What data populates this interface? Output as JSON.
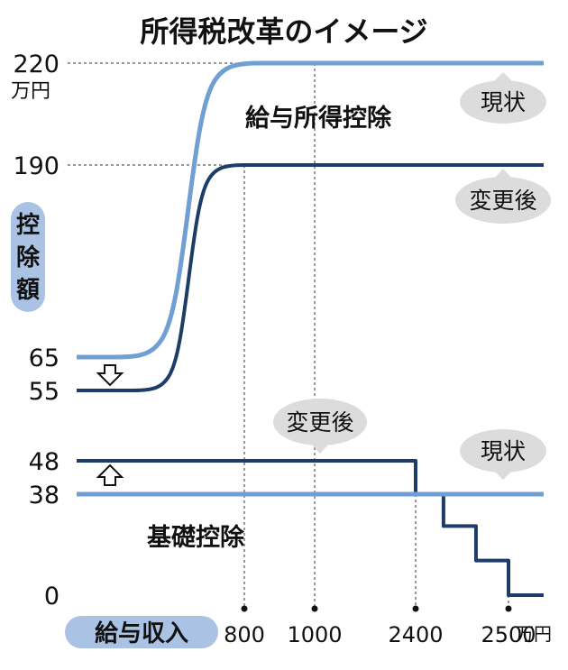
{
  "chart_data": {
    "type": "line",
    "title": "所得税改革のイメージ",
    "colors": {
      "current": "#6f9fd3",
      "after": "#1e3d66",
      "bubble": "#dcdcdc",
      "pill": "#aac3e4"
    },
    "y_axis": {
      "label": "控除額",
      "unit": "万円",
      "ticks": [
        {
          "value": 220,
          "label": "220"
        },
        {
          "value": 190,
          "label": "190"
        },
        {
          "value": 65,
          "label": "65"
        },
        {
          "value": 55,
          "label": "55"
        },
        {
          "value": 48,
          "label": "48"
        },
        {
          "value": 38,
          "label": "38"
        },
        {
          "value": 0,
          "label": "0"
        }
      ]
    },
    "x_axis": {
      "label": "給与収入",
      "unit": "万円",
      "ticks": [
        {
          "value": 800,
          "label": "800"
        },
        {
          "value": 1000,
          "label": "1000"
        },
        {
          "value": 2400,
          "label": "2400"
        },
        {
          "value": 2500,
          "label": "2500"
        }
      ]
    },
    "series": [
      {
        "group": "給与所得控除",
        "name": "現状",
        "style": "current",
        "points": [
          [
            0,
            65
          ],
          [
            180,
            65
          ],
          [
            850,
            220
          ],
          [
            1000,
            220
          ],
          [
            2700,
            220
          ]
        ]
      },
      {
        "group": "給与所得控除",
        "name": "変更後",
        "style": "after",
        "points": [
          [
            0,
            55
          ],
          [
            270,
            55
          ],
          [
            800,
            190
          ],
          [
            2700,
            190
          ]
        ]
      },
      {
        "group": "基礎控除",
        "name": "変更後",
        "style": "after",
        "points": [
          [
            0,
            48
          ],
          [
            2400,
            48
          ],
          [
            2400,
            38
          ],
          [
            2430,
            38
          ],
          [
            2430,
            26
          ],
          [
            2465,
            26
          ],
          [
            2465,
            13
          ],
          [
            2500,
            13
          ],
          [
            2500,
            0
          ],
          [
            2700,
            0
          ]
        ]
      },
      {
        "group": "基礎控除",
        "name": "現状",
        "style": "current",
        "points": [
          [
            0,
            38
          ],
          [
            2700,
            38
          ]
        ]
      }
    ],
    "annotations": {
      "salary_deduction": "給与所得控除",
      "basic_deduction": "基礎控除",
      "bubble_top_current": "現状",
      "bubble_top_after": "変更後",
      "bubble_bottom_after": "変更後",
      "bubble_bottom_current": "現状"
    }
  }
}
